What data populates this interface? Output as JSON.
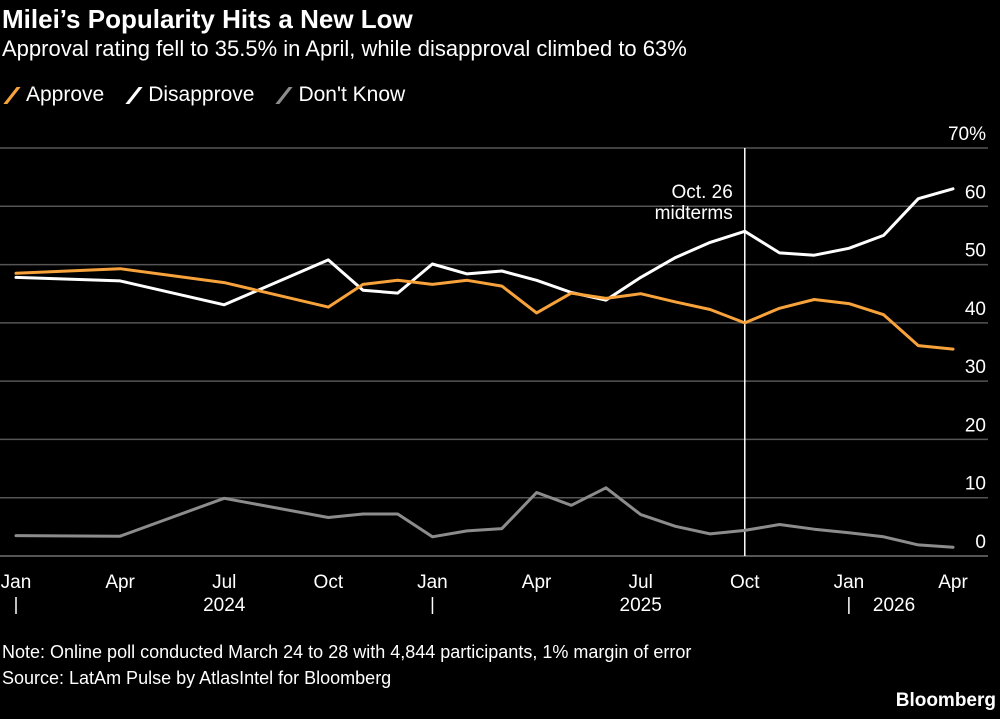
{
  "colors": {
    "approve": "#f7a23b",
    "disapprove": "#ffffff",
    "dont_know": "#8c8c8c",
    "grid": "#555555",
    "background": "#000000"
  },
  "note": "Note: Online poll conducted March 24 to 28 with 4,844 participants, 1% margin of error",
  "source": "Source: LatAm Pulse by AtlasIntel for Bloomberg",
  "brand": "Bloomberg",
  "chart_data": {
    "type": "line",
    "title": "Milei’s Popularity Hits a New Low",
    "subtitle": "Approval rating fell to 35.5% in April, while disapproval climbed to 63%",
    "legend": {
      "placement": "top-left",
      "entries": [
        "Approve",
        "Disapprove",
        "Don't Know"
      ]
    },
    "grid": true,
    "yaxis": {
      "range": [
        0,
        70
      ],
      "ticks": [
        0,
        10,
        20,
        30,
        40,
        50,
        60,
        70
      ],
      "tick_labels": [
        "0",
        "10",
        "20",
        "30",
        "40",
        "50",
        "60",
        "70%"
      ],
      "side": "right"
    },
    "xaxis": {
      "range": [
        "2024-01",
        "2026-04"
      ],
      "ticks": [
        {
          "x": "2024-01",
          "label": "Jan"
        },
        {
          "x": "2024-04",
          "label": "Apr"
        },
        {
          "x": "2024-07",
          "label": "Jul"
        },
        {
          "x": "2024-10",
          "label": "Oct"
        },
        {
          "x": "2025-01",
          "label": "Jan"
        },
        {
          "x": "2025-04",
          "label": "Apr"
        },
        {
          "x": "2025-07",
          "label": "Jul"
        },
        {
          "x": "2025-10",
          "label": "Oct"
        },
        {
          "x": "2026-01",
          "label": "Jan"
        },
        {
          "x": "2026-04",
          "label": "Apr"
        }
      ],
      "years": [
        {
          "label": "2024",
          "start": "2024-01"
        },
        {
          "label": "2025",
          "start": "2025-01"
        },
        {
          "label": "2026",
          "start": "2026-01"
        }
      ]
    },
    "x": [
      "2024-01",
      "2024-04",
      "2024-07",
      "2024-10",
      "2024-11",
      "2024-12",
      "2025-01",
      "2025-02",
      "2025-03",
      "2025-04",
      "2025-05",
      "2025-06",
      "2025-07",
      "2025-08",
      "2025-09",
      "2025-10",
      "2025-11",
      "2025-12",
      "2026-01",
      "2026-02",
      "2026-03",
      "2026-04"
    ],
    "series": [
      {
        "name": "Approve",
        "color": "#f7a23b",
        "values": [
          48.5,
          49.3,
          46.9,
          42.7,
          46.6,
          47.3,
          46.6,
          47.3,
          46.3,
          41.7,
          45.1,
          44.2,
          45.0,
          43.6,
          42.3,
          40.0,
          42.5,
          44.0,
          43.3,
          41.4,
          36.1,
          35.5
        ]
      },
      {
        "name": "Disapprove",
        "color": "#ffffff",
        "values": [
          47.8,
          47.2,
          43.1,
          50.8,
          45.6,
          45.1,
          50.1,
          48.4,
          48.9,
          47.3,
          45.2,
          43.9,
          47.8,
          51.2,
          53.8,
          55.7,
          52.0,
          51.6,
          52.8,
          55.0,
          61.3,
          63.0
        ]
      },
      {
        "name": "Don't Know",
        "color": "#8c8c8c",
        "values": [
          3.5,
          3.4,
          9.9,
          6.6,
          7.2,
          7.2,
          3.3,
          4.3,
          4.7,
          10.9,
          8.7,
          11.7,
          7.1,
          5.1,
          3.8,
          4.4,
          5.4,
          4.6,
          4.0,
          3.3,
          1.9,
          1.5
        ]
      }
    ],
    "annotations": [
      {
        "x": "2025-10",
        "label_line1": "Oct. 26",
        "label_line2": "midterms"
      }
    ]
  }
}
